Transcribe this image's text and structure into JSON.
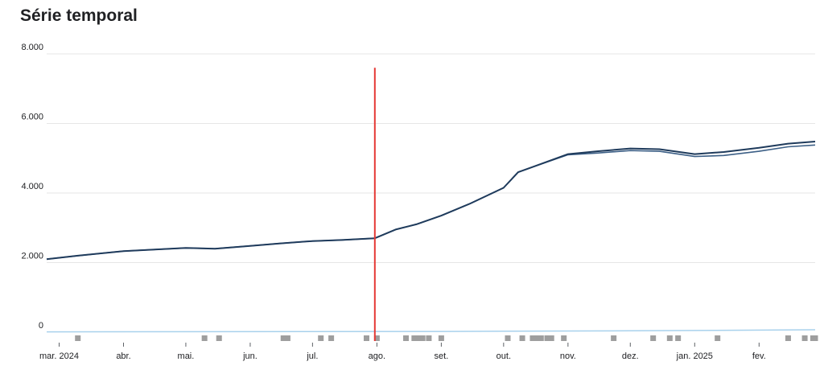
{
  "header": {
    "title": "Série temporal"
  },
  "chart_data": {
    "type": "line",
    "title": "Série temporal",
    "xlabel": "",
    "ylabel": "",
    "xlim": [
      "2024-02-24",
      "2025-02-28"
    ],
    "ylim": [
      0,
      8000
    ],
    "y_ticks": [
      {
        "value": 0,
        "label": "0"
      },
      {
        "value": 2000,
        "label": "2.000"
      },
      {
        "value": 4000,
        "label": "4.000"
      },
      {
        "value": 6000,
        "label": "6.000"
      },
      {
        "value": 8000,
        "label": "8.000"
      }
    ],
    "x_ticks": [
      {
        "date": "2024-03-01",
        "label": "mar. 2024"
      },
      {
        "date": "2024-04-01",
        "label": "abr."
      },
      {
        "date": "2024-05-01",
        "label": "mai."
      },
      {
        "date": "2024-06-01",
        "label": "jun."
      },
      {
        "date": "2024-07-01",
        "label": "jul."
      },
      {
        "date": "2024-08-01",
        "label": "ago."
      },
      {
        "date": "2024-09-01",
        "label": "set."
      },
      {
        "date": "2024-10-01",
        "label": "out."
      },
      {
        "date": "2024-11-01",
        "label": "nov."
      },
      {
        "date": "2024-12-01",
        "label": "dez."
      },
      {
        "date": "2025-01-01",
        "label": "jan. 2025"
      },
      {
        "date": "2025-02-01",
        "label": "fev."
      }
    ],
    "grid": true,
    "legend": "none",
    "colors": {
      "series_a": "#1f3b5c",
      "series_b": "#3c5f86",
      "baseline": "#a8d1ec",
      "marker": "#e53935",
      "events": "#9e9e9e",
      "grid": "#e6e6e6"
    },
    "series": [
      {
        "x": [
          "2024-02-24",
          "2024-03-10",
          "2024-04-01",
          "2024-05-01",
          "2024-05-15",
          "2024-06-01",
          "2024-06-15",
          "2024-07-01",
          "2024-07-15",
          "2024-07-31",
          "2024-08-10",
          "2024-08-20",
          "2024-09-01",
          "2024-09-15",
          "2024-10-01",
          "2024-10-08",
          "2024-10-15",
          "2024-11-01",
          "2024-11-15",
          "2024-12-01",
          "2024-12-15",
          "2025-01-01",
          "2025-01-15",
          "2025-02-01",
          "2025-02-15",
          "2025-02-28"
        ],
        "values": [
          2100,
          2200,
          2330,
          2420,
          2400,
          2480,
          2550,
          2620,
          2650,
          2700,
          2950,
          3100,
          3350,
          3700,
          4150,
          4600,
          4750,
          5100,
          5150,
          5220,
          5200,
          5050,
          5080,
          5200,
          5330,
          5380
        ]
      },
      {
        "x": [
          "2024-02-24",
          "2024-03-10",
          "2024-04-01",
          "2024-05-01",
          "2024-05-15",
          "2024-06-01",
          "2024-06-15",
          "2024-07-01",
          "2024-07-15",
          "2024-07-31",
          "2024-08-10",
          "2024-08-20",
          "2024-09-01",
          "2024-09-15",
          "2024-10-01",
          "2024-10-08",
          "2024-10-15",
          "2024-11-01",
          "2024-11-15",
          "2024-12-01",
          "2024-12-15",
          "2025-01-01",
          "2025-01-15",
          "2025-02-01",
          "2025-02-15",
          "2025-02-28"
        ],
        "values": [
          2100,
          2200,
          2330,
          2420,
          2400,
          2480,
          2550,
          2620,
          2650,
          2700,
          2950,
          3100,
          3350,
          3700,
          4150,
          4600,
          4750,
          5120,
          5200,
          5280,
          5260,
          5120,
          5180,
          5300,
          5420,
          5480
        ]
      },
      {
        "x": [
          "2024-02-24",
          "2024-09-01",
          "2024-12-01",
          "2025-02-28"
        ],
        "values": [
          10,
          20,
          40,
          70
        ]
      }
    ],
    "marker_line": {
      "date": "2024-07-31",
      "from": 0,
      "to": 7600
    },
    "events": [
      "2024-03-10",
      "2024-05-10",
      "2024-05-17",
      "2024-06-17",
      "2024-06-19",
      "2024-07-05",
      "2024-07-10",
      "2024-07-27",
      "2024-08-01",
      "2024-08-15",
      "2024-08-19",
      "2024-08-21",
      "2024-08-23",
      "2024-08-26",
      "2024-09-01",
      "2024-10-03",
      "2024-10-10",
      "2024-10-15",
      "2024-10-17",
      "2024-10-19",
      "2024-10-22",
      "2024-10-24",
      "2024-10-30",
      "2024-11-23",
      "2024-12-12",
      "2024-12-20",
      "2024-12-24",
      "2025-01-12",
      "2025-02-15",
      "2025-02-23",
      "2025-02-27",
      "2025-02-28"
    ]
  }
}
